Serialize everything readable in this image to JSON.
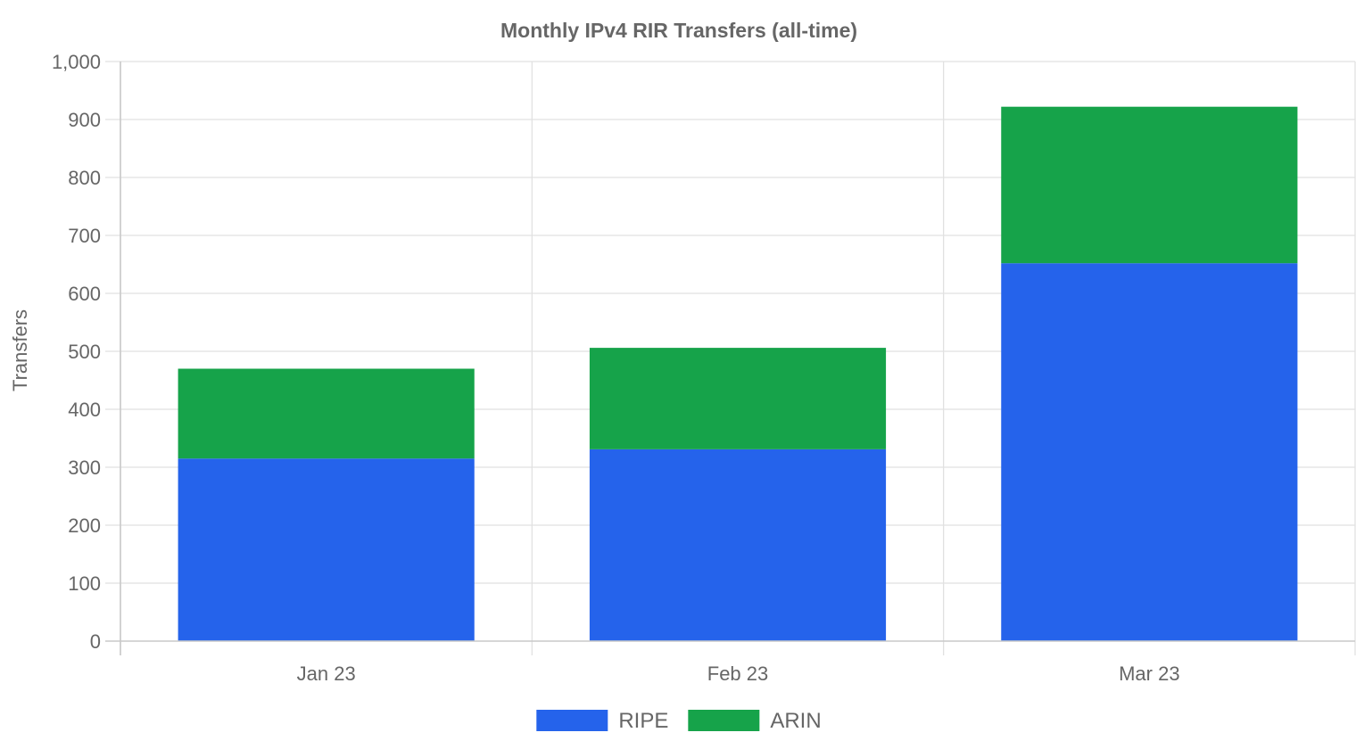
{
  "chart_data": {
    "type": "bar",
    "stacked": true,
    "title": "Monthly IPv4 RIR Transfers (all-time)",
    "xlabel": "",
    "ylabel": "Transfers",
    "categories": [
      "Jan 23",
      "Feb 23",
      "Mar 23"
    ],
    "series": [
      {
        "name": "RIPE",
        "color": "#2563eb",
        "values": [
          315,
          331,
          652
        ]
      },
      {
        "name": "ARIN",
        "color": "#16a34a",
        "values": [
          155,
          175,
          270
        ]
      }
    ],
    "ylim": [
      0,
      1000
    ],
    "yticks": [
      0,
      100,
      200,
      300,
      400,
      500,
      600,
      700,
      800,
      900,
      1000
    ],
    "ytick_labels": [
      "0",
      "100",
      "200",
      "300",
      "400",
      "500",
      "600",
      "700",
      "800",
      "900",
      "1,000"
    ],
    "grid": true,
    "legend_position": "bottom-center"
  }
}
